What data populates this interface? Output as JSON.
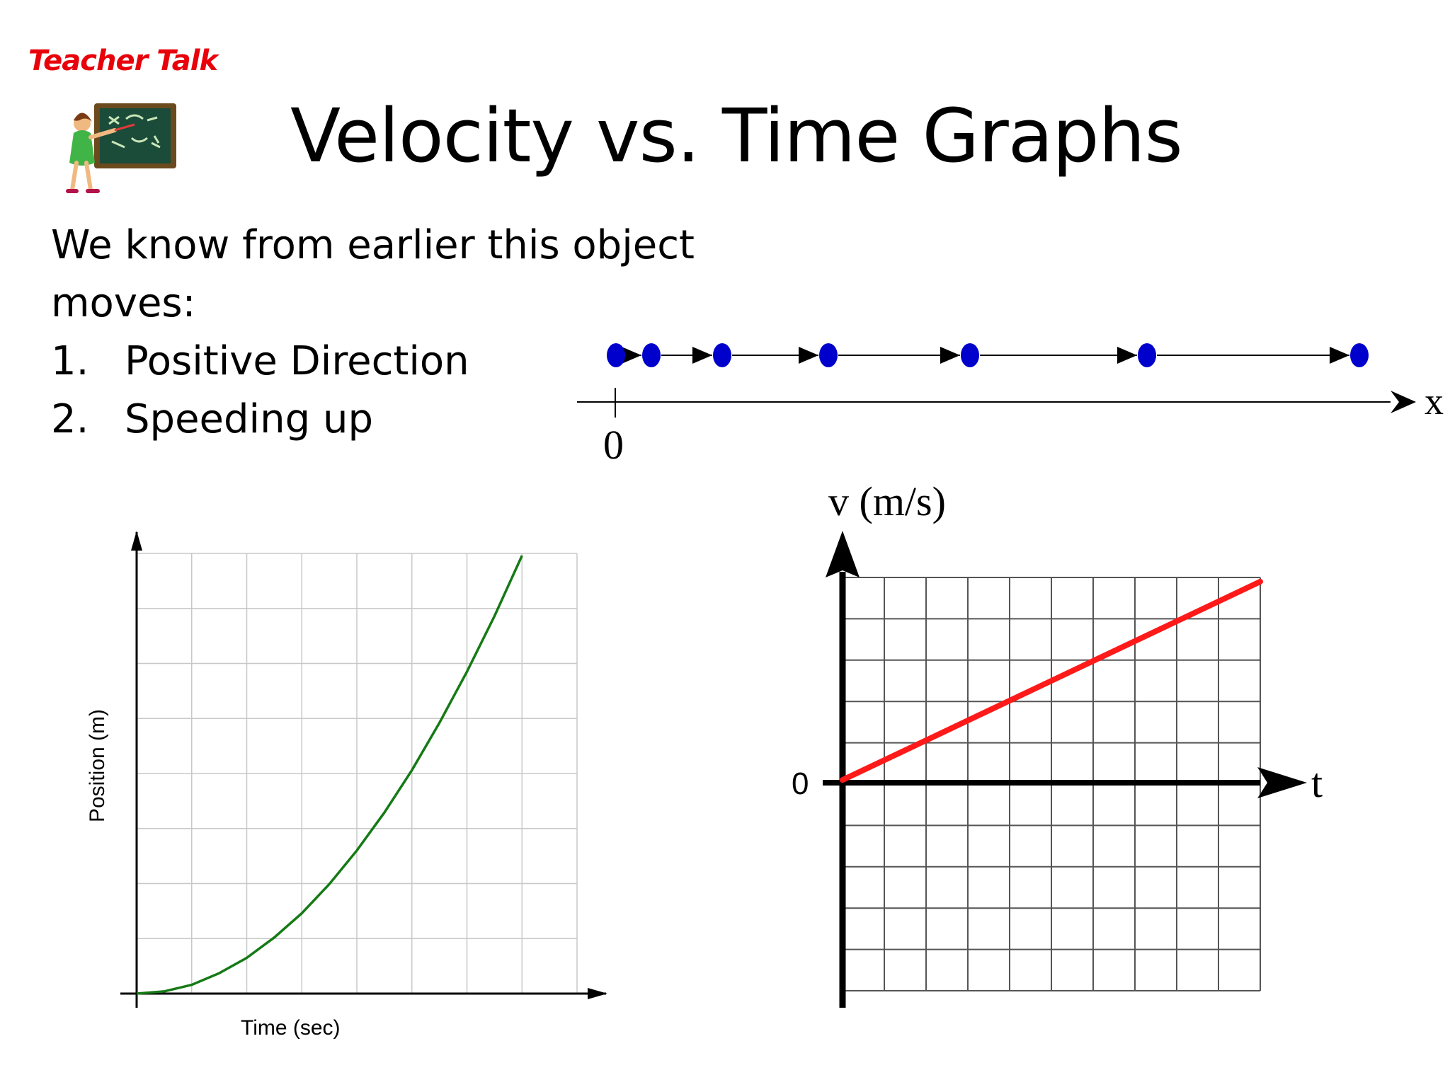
{
  "badge": {
    "label": "Teacher Talk",
    "color": "#e8000b"
  },
  "title": "Velocity vs. Time Graphs",
  "intro": "We know from earlier this object moves:",
  "list": [
    {
      "num": "1.",
      "text": "Positive Direction"
    },
    {
      "num": "2.",
      "text": "Speeding up"
    }
  ],
  "teacher_icon": "teacher-pointing-chalkboard",
  "chart_data": [
    {
      "type": "motion-diagram",
      "axis_label": "x",
      "origin_label": "0",
      "dot_color": "#0000cc",
      "positions": [
        0,
        0.5,
        1.5,
        3,
        5,
        7.5,
        10.5
      ],
      "xlim": [
        -0.55,
        11.3
      ]
    },
    {
      "type": "line",
      "xlabel": "Time (sec)",
      "ylabel": "Position (m)",
      "line_color": "#157a15",
      "xlim": [
        0,
        8
      ],
      "ylim": [
        0,
        8
      ],
      "grid": true,
      "x": [
        0,
        0.5,
        1,
        1.5,
        2,
        2.5,
        3,
        3.5,
        4,
        4.5,
        5,
        5.5,
        6,
        6.5,
        7,
        7.25
      ],
      "y": [
        0,
        0.04,
        0.16,
        0.37,
        0.65,
        1.02,
        1.46,
        1.99,
        2.6,
        3.29,
        4.06,
        4.92,
        5.85,
        6.86,
        7.96,
        7.4
      ]
    },
    {
      "type": "line",
      "ylabel": "v (m/s)",
      "xlabel": "t",
      "origin_label": "0",
      "line_color": "#ff1a1a",
      "xlim": [
        0,
        10
      ],
      "ylim": [
        -5,
        5
      ],
      "grid": true,
      "x": [
        0,
        10
      ],
      "y": [
        0.1,
        4.9
      ]
    }
  ]
}
